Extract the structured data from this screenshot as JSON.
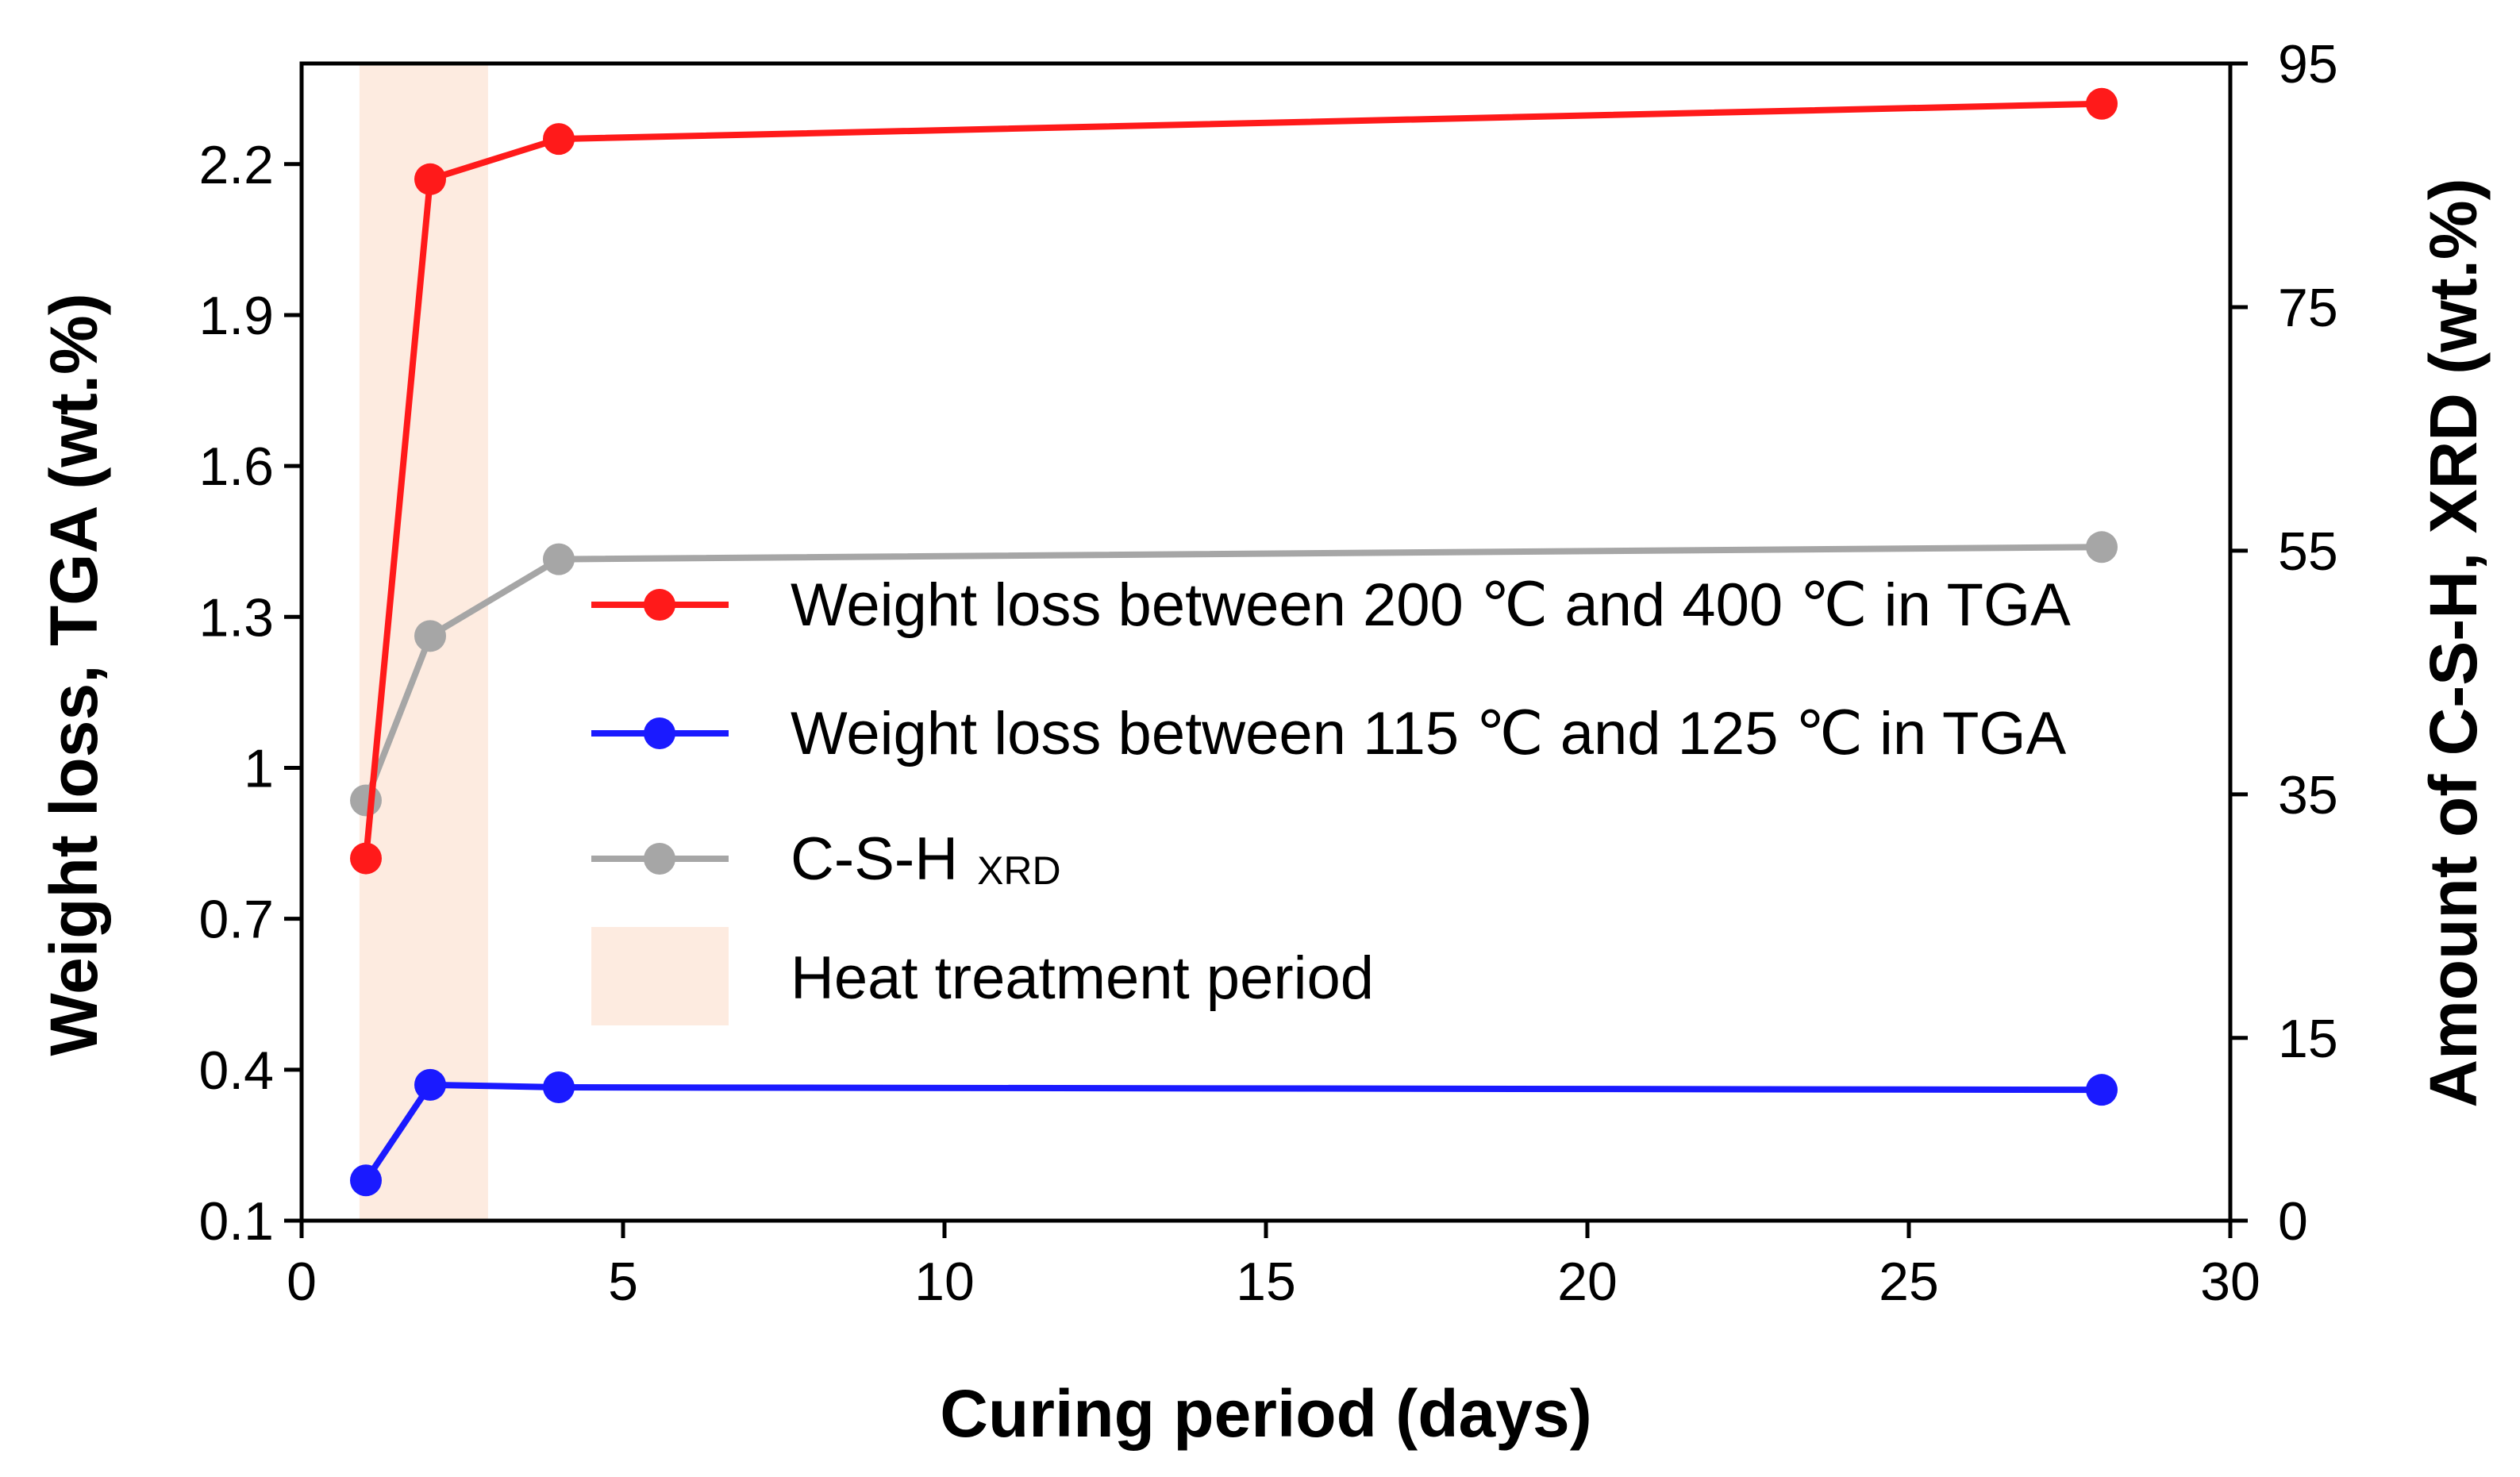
{
  "chart_data": {
    "type": "line",
    "xlabel": "Curing period (days)",
    "ylabel_left": "Weight loss,  TGA (wt.%)",
    "ylabel_right": "Amount of C-S-H, XRD (wt.%)",
    "xlim": [
      0,
      30
    ],
    "xticks": [
      0,
      5,
      10,
      15,
      20,
      25,
      30
    ],
    "xtick_labels": [
      "0",
      "5",
      "10",
      "15",
      "20",
      "25",
      "30"
    ],
    "ylim_left": [
      0.1,
      2.4
    ],
    "yticks_left": [
      0.1,
      0.4,
      0.7,
      1.0,
      1.3,
      1.6,
      1.9,
      2.2
    ],
    "ytick_labels_left": [
      "0.1",
      "0.4",
      "0.7",
      "1",
      "1.3",
      "1.6",
      "1.9",
      "2.2"
    ],
    "ylim_right": [
      0,
      95
    ],
    "yticks_right": [
      0,
      15,
      35,
      55,
      75,
      95
    ],
    "ytick_labels_right": [
      "0",
      "15",
      "35",
      "55",
      "75",
      "95"
    ],
    "shaded_region": {
      "x_start": 0.9,
      "x_end": 2.9,
      "label": "Heat treatment period",
      "color": "#fdebe0"
    },
    "series": [
      {
        "name": "Weight loss between 200 ℃ and 400 ℃ in TGA",
        "axis": "left",
        "color": "#ff1a1a",
        "x": [
          1,
          2,
          4,
          28
        ],
        "y": [
          0.82,
          2.17,
          2.25,
          2.32
        ]
      },
      {
        "name": "Weight loss between 115 ℃ and 125 ℃ in TGA",
        "axis": "left",
        "color": "#1a1aff",
        "x": [
          1,
          2,
          4,
          28
        ],
        "y": [
          0.18,
          0.37,
          0.365,
          0.36
        ]
      },
      {
        "name": "C-S-H",
        "name_sub": "XRD",
        "axis": "right",
        "color": "#a6a6a6",
        "x": [
          1,
          2,
          4,
          28
        ],
        "y": [
          34.5,
          48.0,
          54.3,
          55.3
        ]
      }
    ]
  }
}
